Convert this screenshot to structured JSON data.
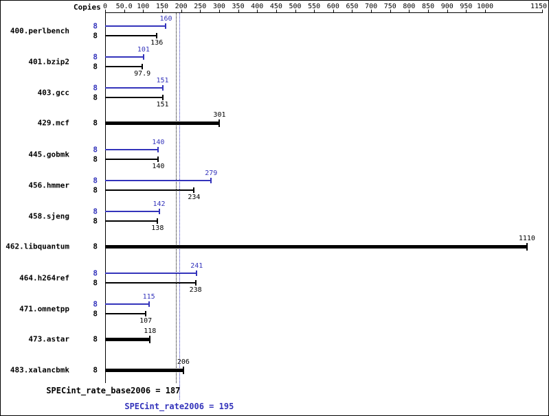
{
  "colors": {
    "peak": "#3333bb",
    "base": "#000000",
    "background": "#ffffff"
  },
  "chart_data": {
    "type": "bar",
    "orientation": "horizontal",
    "title": "",
    "legend": "off",
    "axis": {
      "label": "Copies",
      "position": "top",
      "min": 0,
      "max": 1150,
      "ticks": [
        {
          "value": 0,
          "label": "0"
        },
        {
          "value": 50,
          "label": "50.0"
        },
        {
          "value": 100,
          "label": "100"
        },
        {
          "value": 150,
          "label": "150"
        },
        {
          "value": 200,
          "label": "200"
        },
        {
          "value": 250,
          "label": "250"
        },
        {
          "value": 300,
          "label": "300"
        },
        {
          "value": 350,
          "label": "350"
        },
        {
          "value": 400,
          "label": "400"
        },
        {
          "value": 450,
          "label": "450"
        },
        {
          "value": 500,
          "label": "500"
        },
        {
          "value": 550,
          "label": "550"
        },
        {
          "value": 600,
          "label": "600"
        },
        {
          "value": 650,
          "label": "650"
        },
        {
          "value": 700,
          "label": "700"
        },
        {
          "value": 750,
          "label": "750"
        },
        {
          "value": 800,
          "label": "800"
        },
        {
          "value": 850,
          "label": "850"
        },
        {
          "value": 900,
          "label": "900"
        },
        {
          "value": 950,
          "label": "950"
        },
        {
          "value": 1000,
          "label": "1000"
        },
        {
          "value": 1150,
          "label": "1150"
        }
      ]
    },
    "benchmarks": [
      {
        "name": "400.perlbench",
        "copies": "8",
        "peak": 160,
        "base": 136,
        "peak_label": "160",
        "base_label": "136"
      },
      {
        "name": "401.bzip2",
        "copies": "8",
        "peak": 101,
        "base": 97.9,
        "peak_label": "101",
        "base_label": "97.9"
      },
      {
        "name": "403.gcc",
        "copies": "8",
        "peak": 151,
        "base": 151,
        "peak_label": "151",
        "base_label": "151"
      },
      {
        "name": "429.mcf",
        "copies": "8",
        "single": 301,
        "single_label": "301"
      },
      {
        "name": "445.gobmk",
        "copies": "8",
        "peak": 140,
        "base": 140,
        "peak_label": "140",
        "base_label": "140"
      },
      {
        "name": "456.hmmer",
        "copies": "8",
        "peak": 279,
        "base": 234,
        "peak_label": "279",
        "base_label": "234"
      },
      {
        "name": "458.sjeng",
        "copies": "8",
        "peak": 142,
        "base": 138,
        "peak_label": "142",
        "base_label": "138"
      },
      {
        "name": "462.libquantum",
        "copies": "8",
        "single": 1110,
        "single_label": "1110"
      },
      {
        "name": "464.h264ref",
        "copies": "8",
        "peak": 241,
        "base": 238,
        "peak_label": "241",
        "base_label": "238"
      },
      {
        "name": "471.omnetpp",
        "copies": "8",
        "peak": 115,
        "base": 107,
        "peak_label": "115",
        "base_label": "107"
      },
      {
        "name": "473.astar",
        "copies": "8",
        "single": 118,
        "single_label": "118"
      },
      {
        "name": "483.xalancbmk",
        "copies": "8",
        "single": 206,
        "single_label": "206"
      }
    ],
    "means": {
      "base": {
        "value": 187,
        "text": "SPECint_rate_base2006 = 187"
      },
      "peak": {
        "value": 195,
        "text": "SPECint_rate2006 = 195"
      }
    }
  }
}
